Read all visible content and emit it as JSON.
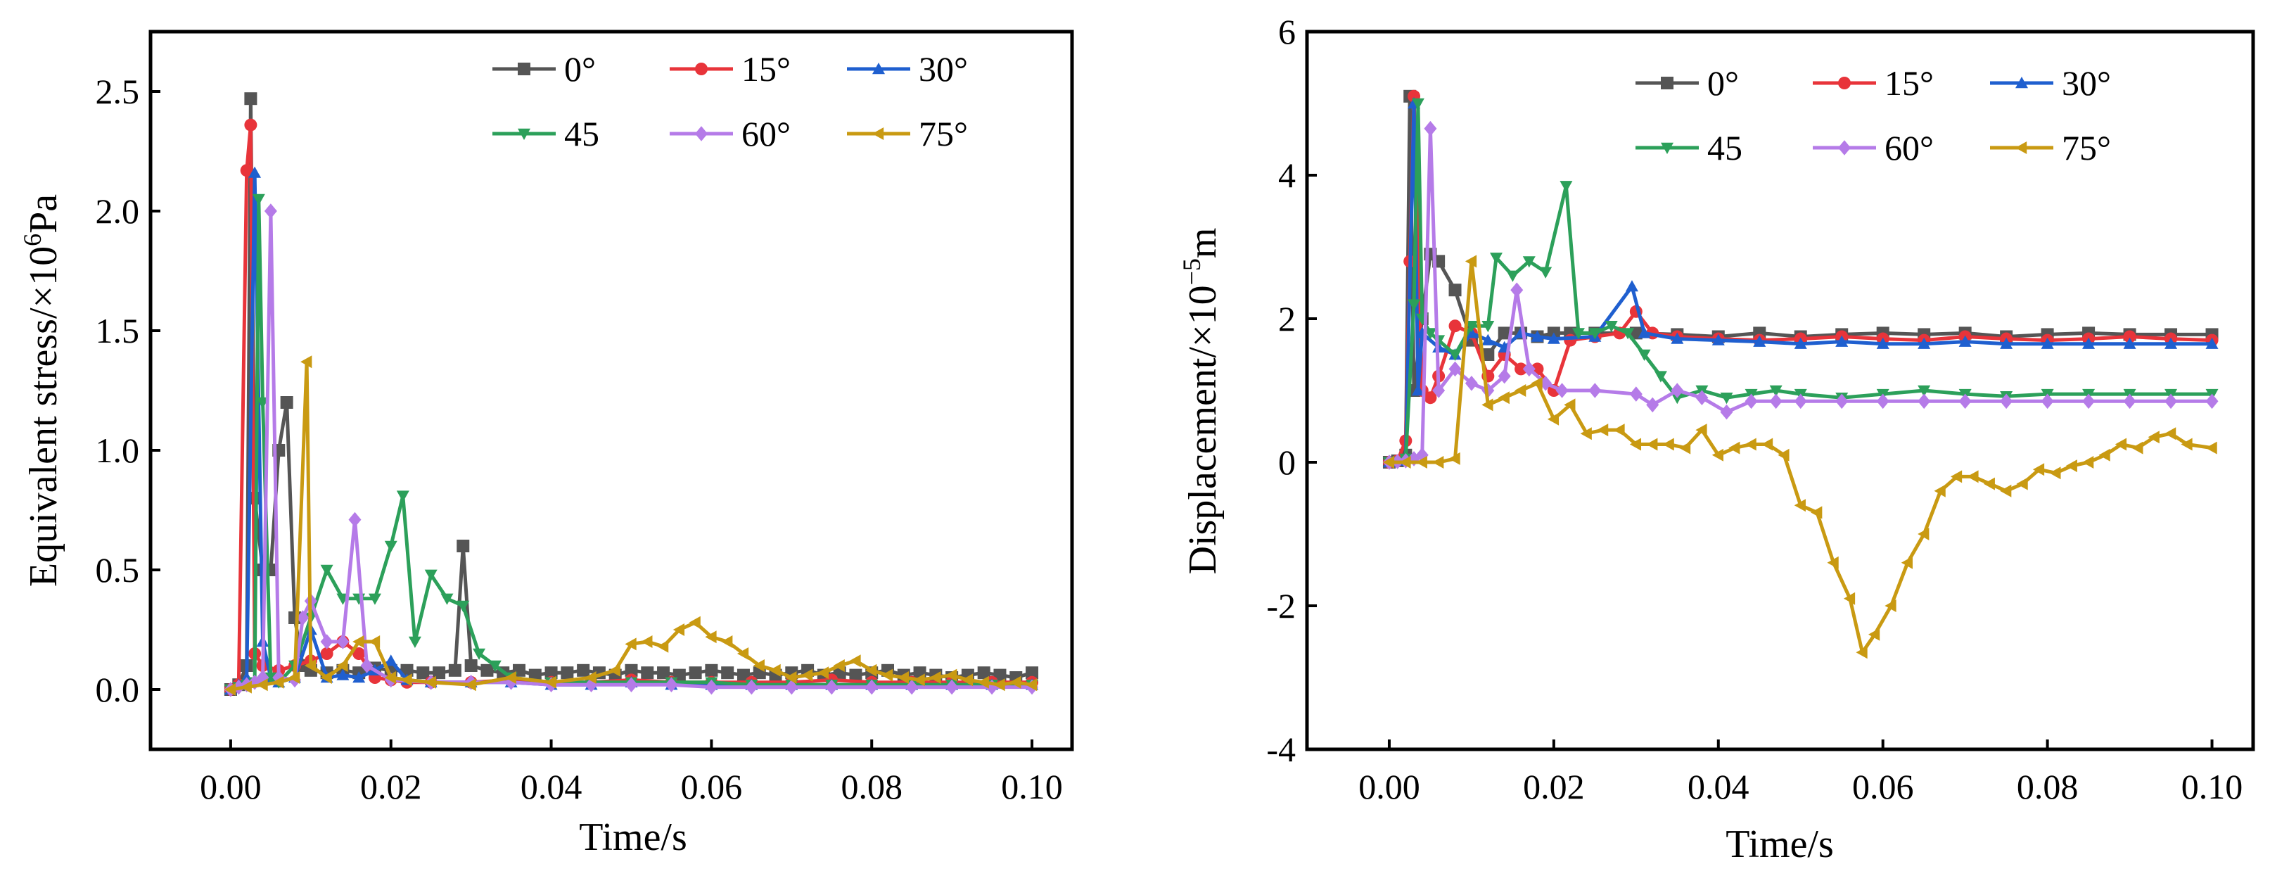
{
  "chart_data": [
    {
      "type": "line",
      "xlabel": "Time/s",
      "ylabel_main": "Equivalent stress/×10",
      "ylabel_sup": "6",
      "ylabel_unit": "Pa",
      "xlim": [
        -0.01,
        0.105
      ],
      "ylim": [
        -0.25,
        2.75
      ],
      "xticks": [
        0.0,
        0.02,
        0.04,
        0.06,
        0.08,
        0.1
      ],
      "xtick_labels": [
        "0.00",
        "0.02",
        "0.04",
        "0.06",
        "0.08",
        "0.10"
      ],
      "yticks": [
        0.0,
        0.5,
        1.0,
        1.5,
        2.0,
        2.5
      ],
      "ytick_labels": [
        "0.0",
        "0.5",
        "1.0",
        "1.5",
        "2.0",
        "2.5"
      ],
      "legend_position": "top-right",
      "series": [
        {
          "name": "0°",
          "color": "#555555",
          "marker": "square",
          "x": [
            0,
            0.001,
            0.002,
            0.0025,
            0.003,
            0.004,
            0.005,
            0.006,
            0.007,
            0.008,
            0.009,
            0.01,
            0.012,
            0.014,
            0.016,
            0.018,
            0.02,
            0.022,
            0.024,
            0.026,
            0.028,
            0.029,
            0.03,
            0.032,
            0.034,
            0.036,
            0.038,
            0.04,
            0.042,
            0.044,
            0.046,
            0.048,
            0.05,
            0.052,
            0.054,
            0.056,
            0.058,
            0.06,
            0.062,
            0.064,
            0.066,
            0.068,
            0.07,
            0.072,
            0.074,
            0.076,
            0.078,
            0.08,
            0.082,
            0.084,
            0.086,
            0.088,
            0.09,
            0.092,
            0.094,
            0.096,
            0.098,
            0.1
          ],
          "y": [
            0,
            0.02,
            0.1,
            2.47,
            0.8,
            0.5,
            0.5,
            1.0,
            1.2,
            0.3,
            0.1,
            0.08,
            0.07,
            0.08,
            0.07,
            0.09,
            0.08,
            0.08,
            0.07,
            0.07,
            0.08,
            0.6,
            0.1,
            0.08,
            0.07,
            0.08,
            0.06,
            0.07,
            0.07,
            0.08,
            0.07,
            0.06,
            0.08,
            0.07,
            0.07,
            0.06,
            0.07,
            0.08,
            0.07,
            0.06,
            0.07,
            0.06,
            0.07,
            0.08,
            0.06,
            0.07,
            0.06,
            0.07,
            0.08,
            0.06,
            0.07,
            0.06,
            0.05,
            0.06,
            0.07,
            0.06,
            0.05,
            0.07
          ]
        },
        {
          "name": "15°",
          "color": "#e8343a",
          "marker": "circle",
          "x": [
            0,
            0.001,
            0.002,
            0.0025,
            0.003,
            0.004,
            0.006,
            0.008,
            0.01,
            0.012,
            0.014,
            0.016,
            0.018,
            0.02,
            0.022,
            0.025,
            0.03,
            0.035,
            0.04,
            0.045,
            0.05,
            0.055,
            0.06,
            0.065,
            0.07,
            0.075,
            0.08,
            0.085,
            0.09,
            0.095,
            0.1
          ],
          "y": [
            0,
            0.02,
            2.17,
            2.36,
            0.15,
            0.1,
            0.08,
            0.1,
            0.12,
            0.15,
            0.2,
            0.15,
            0.05,
            0.04,
            0.03,
            0.03,
            0.03,
            0.04,
            0.03,
            0.03,
            0.04,
            0.03,
            0.03,
            0.03,
            0.03,
            0.04,
            0.03,
            0.03,
            0.03,
            0.03,
            0.03
          ]
        },
        {
          "name": "30°",
          "color": "#1f5fcf",
          "marker": "triangle-up",
          "x": [
            0,
            0.001,
            0.002,
            0.003,
            0.004,
            0.005,
            0.006,
            0.008,
            0.01,
            0.012,
            0.014,
            0.016,
            0.018,
            0.02,
            0.022,
            0.025,
            0.03,
            0.035,
            0.04,
            0.045,
            0.05,
            0.055,
            0.06,
            0.065,
            0.07,
            0.075,
            0.08,
            0.085,
            0.09,
            0.095,
            0.1
          ],
          "y": [
            0,
            0.02,
            0.05,
            2.16,
            0.2,
            0.05,
            0.03,
            0.05,
            0.25,
            0.05,
            0.06,
            0.05,
            0.08,
            0.12,
            0.04,
            0.03,
            0.03,
            0.03,
            0.02,
            0.02,
            0.03,
            0.02,
            0.02,
            0.02,
            0.02,
            0.02,
            0.02,
            0.02,
            0.02,
            0.02,
            0.02
          ]
        },
        {
          "name": "45",
          "color": "#2ca05a",
          "marker": "triangle-down",
          "x": [
            0,
            0.001,
            0.002,
            0.003,
            0.0035,
            0.004,
            0.005,
            0.006,
            0.008,
            0.01,
            0.012,
            0.014,
            0.016,
            0.018,
            0.02,
            0.0215,
            0.023,
            0.025,
            0.027,
            0.029,
            0.031,
            0.033,
            0.035,
            0.04,
            0.045,
            0.05,
            0.055,
            0.06,
            0.065,
            0.07,
            0.075,
            0.08,
            0.085,
            0.09,
            0.095,
            0.1
          ],
          "y": [
            0,
            0.01,
            0.02,
            0.03,
            2.05,
            1.2,
            0.05,
            0.03,
            0.1,
            0.3,
            0.5,
            0.38,
            0.38,
            0.38,
            0.6,
            0.81,
            0.2,
            0.48,
            0.38,
            0.35,
            0.15,
            0.1,
            0.05,
            0.03,
            0.03,
            0.03,
            0.03,
            0.03,
            0.02,
            0.02,
            0.02,
            0.02,
            0.02,
            0.02,
            0.02,
            0.02
          ]
        },
        {
          "name": "60°",
          "color": "#b57be8",
          "marker": "diamond",
          "x": [
            0,
            0.001,
            0.002,
            0.003,
            0.004,
            0.005,
            0.006,
            0.008,
            0.009,
            0.01,
            0.012,
            0.014,
            0.0155,
            0.017,
            0.02,
            0.025,
            0.03,
            0.035,
            0.04,
            0.045,
            0.05,
            0.055,
            0.06,
            0.065,
            0.07,
            0.075,
            0.08,
            0.085,
            0.09,
            0.095,
            0.1
          ],
          "y": [
            0,
            0.01,
            0.02,
            0.03,
            0.05,
            2.0,
            0.05,
            0.04,
            0.3,
            0.37,
            0.2,
            0.2,
            0.71,
            0.1,
            0.04,
            0.03,
            0.03,
            0.03,
            0.02,
            0.02,
            0.02,
            0.02,
            0.01,
            0.01,
            0.01,
            0.01,
            0.01,
            0.01,
            0.01,
            0.01,
            0.01
          ]
        },
        {
          "name": "75°",
          "color": "#c99a12",
          "marker": "triangle-left",
          "x": [
            0,
            0.002,
            0.004,
            0.006,
            0.008,
            0.0095,
            0.01,
            0.012,
            0.014,
            0.016,
            0.018,
            0.02,
            0.022,
            0.025,
            0.03,
            0.035,
            0.04,
            0.045,
            0.048,
            0.05,
            0.052,
            0.054,
            0.056,
            0.058,
            0.06,
            0.062,
            0.064,
            0.066,
            0.068,
            0.07,
            0.072,
            0.074,
            0.076,
            0.078,
            0.08,
            0.082,
            0.084,
            0.086,
            0.088,
            0.09,
            0.092,
            0.094,
            0.096,
            0.098,
            0.1
          ],
          "y": [
            0,
            0.01,
            0.02,
            0.03,
            0.05,
            1.37,
            0.1,
            0.05,
            0.1,
            0.2,
            0.2,
            0.05,
            0.04,
            0.03,
            0.02,
            0.05,
            0.03,
            0.05,
            0.08,
            0.19,
            0.2,
            0.18,
            0.25,
            0.28,
            0.22,
            0.2,
            0.15,
            0.1,
            0.08,
            0.05,
            0.06,
            0.07,
            0.1,
            0.12,
            0.08,
            0.06,
            0.05,
            0.04,
            0.05,
            0.06,
            0.04,
            0.03,
            0.02,
            0.03,
            0.02
          ]
        }
      ]
    },
    {
      "type": "line",
      "xlabel": "Time/s",
      "ylabel_main": "Displacement/×10",
      "ylabel_sup": "−5",
      "ylabel_unit": "m",
      "xlim": [
        -0.01,
        0.105
      ],
      "ylim": [
        -4,
        6
      ],
      "xticks": [
        0.0,
        0.02,
        0.04,
        0.06,
        0.08,
        0.1
      ],
      "xtick_labels": [
        "0.00",
        "0.02",
        "0.04",
        "0.06",
        "0.08",
        "0.10"
      ],
      "yticks": [
        -4,
        -2,
        0,
        2,
        4,
        6
      ],
      "ytick_labels": [
        "-4",
        "-2",
        "0",
        "2",
        "4",
        "6"
      ],
      "legend_position": "top-right",
      "series": [
        {
          "name": "0°",
          "color": "#555555",
          "marker": "square",
          "x": [
            0,
            0.001,
            0.002,
            0.0025,
            0.003,
            0.004,
            0.005,
            0.006,
            0.008,
            0.01,
            0.012,
            0.014,
            0.016,
            0.018,
            0.02,
            0.022,
            0.025,
            0.03,
            0.035,
            0.04,
            0.045,
            0.05,
            0.055,
            0.06,
            0.065,
            0.07,
            0.075,
            0.08,
            0.085,
            0.09,
            0.095,
            0.1
          ],
          "y": [
            0,
            0.02,
            0.1,
            5.1,
            1.0,
            2.0,
            2.9,
            2.8,
            2.4,
            1.7,
            1.5,
            1.8,
            1.8,
            1.75,
            1.8,
            1.8,
            1.8,
            1.8,
            1.78,
            1.75,
            1.8,
            1.75,
            1.78,
            1.8,
            1.78,
            1.8,
            1.75,
            1.78,
            1.8,
            1.78,
            1.78,
            1.78
          ]
        },
        {
          "name": "15°",
          "color": "#e8343a",
          "marker": "circle",
          "x": [
            0,
            0.001,
            0.002,
            0.0025,
            0.003,
            0.004,
            0.005,
            0.006,
            0.008,
            0.01,
            0.012,
            0.014,
            0.016,
            0.018,
            0.02,
            0.022,
            0.025,
            0.028,
            0.03,
            0.032,
            0.035,
            0.04,
            0.045,
            0.05,
            0.055,
            0.06,
            0.065,
            0.07,
            0.075,
            0.08,
            0.085,
            0.09,
            0.095,
            0.1
          ],
          "y": [
            0,
            0.02,
            0.3,
            2.8,
            5.1,
            1.0,
            0.9,
            1.2,
            1.9,
            1.8,
            1.2,
            1.5,
            1.3,
            1.3,
            1.0,
            1.7,
            1.75,
            1.8,
            2.1,
            1.8,
            1.75,
            1.72,
            1.7,
            1.72,
            1.75,
            1.72,
            1.7,
            1.75,
            1.72,
            1.7,
            1.72,
            1.75,
            1.72,
            1.7
          ]
        },
        {
          "name": "30°",
          "color": "#1f5fcf",
          "marker": "triangle-up",
          "x": [
            0,
            0.001,
            0.002,
            0.003,
            0.0035,
            0.004,
            0.006,
            0.008,
            0.01,
            0.012,
            0.014,
            0.016,
            0.018,
            0.02,
            0.025,
            0.0295,
            0.031,
            0.035,
            0.04,
            0.045,
            0.05,
            0.055,
            0.06,
            0.065,
            0.07,
            0.075,
            0.08,
            0.085,
            0.09,
            0.095,
            0.1
          ],
          "y": [
            0,
            0.02,
            0.05,
            5.0,
            1.0,
            1.8,
            1.6,
            1.5,
            1.8,
            1.7,
            1.6,
            1.8,
            1.75,
            1.72,
            1.75,
            2.45,
            1.8,
            1.72,
            1.7,
            1.68,
            1.65,
            1.68,
            1.65,
            1.65,
            1.68,
            1.65,
            1.65,
            1.65,
            1.65,
            1.65,
            1.65
          ]
        },
        {
          "name": "45",
          "color": "#2ca05a",
          "marker": "triangle-down",
          "x": [
            0,
            0.001,
            0.002,
            0.003,
            0.0035,
            0.004,
            0.005,
            0.006,
            0.008,
            0.01,
            0.012,
            0.013,
            0.015,
            0.017,
            0.019,
            0.0215,
            0.023,
            0.025,
            0.027,
            0.029,
            0.031,
            0.033,
            0.035,
            0.038,
            0.041,
            0.044,
            0.047,
            0.05,
            0.055,
            0.06,
            0.065,
            0.07,
            0.075,
            0.08,
            0.085,
            0.09,
            0.095,
            0.1
          ],
          "y": [
            0,
            0.01,
            0.05,
            2.2,
            5.0,
            2.0,
            1.8,
            1.7,
            1.5,
            1.9,
            1.9,
            2.85,
            2.6,
            2.8,
            2.65,
            3.85,
            1.8,
            1.8,
            1.9,
            1.8,
            1.5,
            1.2,
            0.9,
            1.0,
            0.9,
            0.95,
            1.0,
            0.95,
            0.9,
            0.95,
            1.0,
            0.95,
            0.92,
            0.95,
            0.95,
            0.95,
            0.95,
            0.95
          ]
        },
        {
          "name": "60°",
          "color": "#b57be8",
          "marker": "diamond",
          "x": [
            0,
            0.001,
            0.002,
            0.003,
            0.004,
            0.005,
            0.006,
            0.008,
            0.01,
            0.012,
            0.014,
            0.0155,
            0.017,
            0.019,
            0.021,
            0.025,
            0.03,
            0.032,
            0.035,
            0.038,
            0.041,
            0.044,
            0.047,
            0.05,
            0.055,
            0.06,
            0.065,
            0.07,
            0.075,
            0.08,
            0.085,
            0.09,
            0.095,
            0.1
          ],
          "y": [
            0,
            0.01,
            0.02,
            0.05,
            0.1,
            4.65,
            1.0,
            1.3,
            1.1,
            1.0,
            1.2,
            2.4,
            1.3,
            1.1,
            1.0,
            1.0,
            0.95,
            0.8,
            1.0,
            0.9,
            0.7,
            0.85,
            0.85,
            0.85,
            0.85,
            0.85,
            0.85,
            0.85,
            0.85,
            0.85,
            0.85,
            0.85,
            0.85,
            0.85
          ]
        },
        {
          "name": "75°",
          "color": "#c99a12",
          "marker": "triangle-left",
          "x": [
            0,
            0.002,
            0.004,
            0.006,
            0.008,
            0.01,
            0.012,
            0.014,
            0.016,
            0.018,
            0.02,
            0.022,
            0.024,
            0.026,
            0.028,
            0.03,
            0.032,
            0.034,
            0.036,
            0.038,
            0.04,
            0.042,
            0.044,
            0.046,
            0.048,
            0.05,
            0.052,
            0.054,
            0.056,
            0.0575,
            0.059,
            0.061,
            0.063,
            0.065,
            0.067,
            0.069,
            0.071,
            0.073,
            0.075,
            0.077,
            0.079,
            0.081,
            0.083,
            0.085,
            0.087,
            0.089,
            0.091,
            0.093,
            0.095,
            0.097,
            0.1
          ],
          "y": [
            0,
            0.0,
            0.0,
            0.0,
            0.05,
            2.8,
            0.8,
            0.9,
            1.0,
            1.1,
            0.6,
            0.8,
            0.4,
            0.45,
            0.45,
            0.25,
            0.25,
            0.25,
            0.2,
            0.45,
            0.1,
            0.2,
            0.25,
            0.25,
            0.1,
            -0.6,
            -0.7,
            -1.4,
            -1.9,
            -2.65,
            -2.4,
            -2.0,
            -1.4,
            -1.0,
            -0.4,
            -0.2,
            -0.2,
            -0.3,
            -0.4,
            -0.3,
            -0.1,
            -0.15,
            -0.05,
            0.0,
            0.1,
            0.25,
            0.2,
            0.35,
            0.4,
            0.25,
            0.2
          ]
        }
      ]
    }
  ]
}
